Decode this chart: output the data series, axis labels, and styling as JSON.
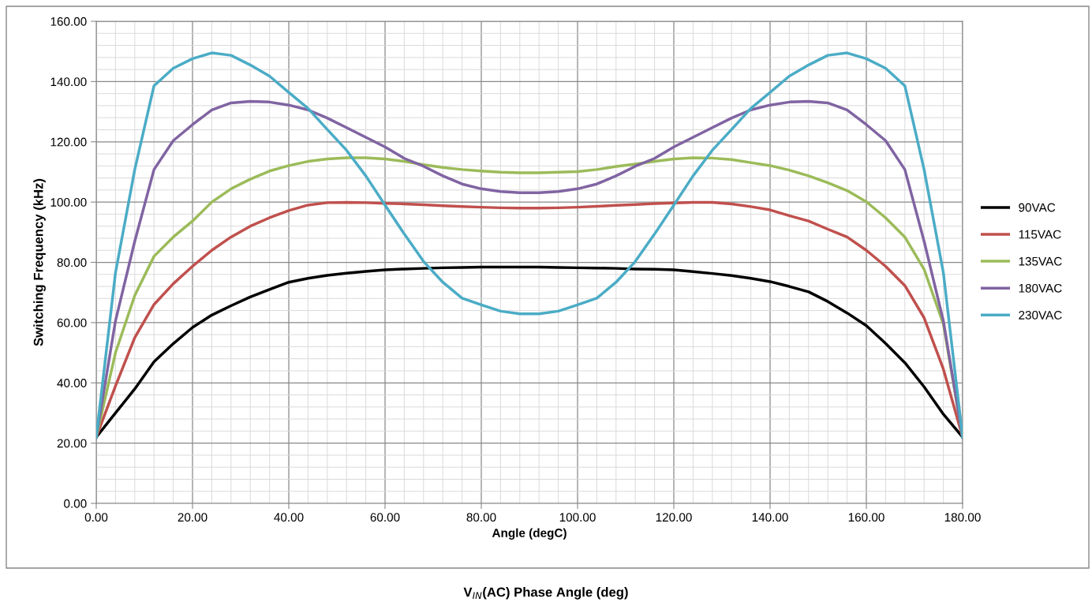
{
  "chart_data": {
    "type": "line",
    "xlabel": "Angle (degC)",
    "ylabel": "Switching Frequency (kHz)",
    "annotations": [
      "V$_{IN}$(AC) Phase Angle (deg)"
    ],
    "x": [
      0,
      4,
      8,
      12,
      16,
      20,
      24,
      28,
      32,
      36,
      40,
      44,
      48,
      52,
      56,
      60,
      64,
      68,
      72,
      76,
      80,
      84,
      88,
      92,
      96,
      100,
      104,
      108,
      112,
      116,
      120,
      124,
      128,
      132,
      136,
      140,
      144,
      148,
      152,
      156,
      160,
      164,
      168,
      172,
      176,
      180
    ],
    "series": [
      {
        "name": "90VAC",
        "color": "#000000",
        "values": [
          22,
          30,
          38,
          47,
          53,
          58.4,
          62.5,
          65.6,
          68.5,
          71,
          73.4,
          74.7,
          75.7,
          76.4,
          77,
          77.5,
          77.8,
          78,
          78.2,
          78.3,
          78.4,
          78.4,
          78.4,
          78.4,
          78.3,
          78.2,
          78.1,
          78,
          77.8,
          77.7,
          77.5,
          76.9,
          76.3,
          75.6,
          74.7,
          73.6,
          72,
          70.2,
          67,
          63.2,
          59,
          53.1,
          46.7,
          38.7,
          29.6,
          22
        ]
      },
      {
        "name": "115VAC",
        "color": "#c0504d",
        "values": [
          22,
          39,
          55,
          66,
          72.9,
          78.7,
          84,
          88.4,
          92,
          94.8,
          97.2,
          99,
          99.8,
          99.9,
          99.8,
          99.6,
          99.4,
          99.1,
          98.8,
          98.5,
          98.3,
          98.1,
          98,
          98,
          98.1,
          98.3,
          98.6,
          98.9,
          99.2,
          99.5,
          99.7,
          99.9,
          99.9,
          99.4,
          98.5,
          97.4,
          95.5,
          93.7,
          91,
          88.4,
          84,
          78.7,
          72.3,
          61.6,
          44.6,
          22
        ]
      },
      {
        "name": "135VAC",
        "color": "#9bbb59",
        "values": [
          22,
          50,
          69,
          82,
          88.4,
          93.7,
          100,
          104.4,
          107.6,
          110.3,
          112.1,
          113.5,
          114.3,
          114.7,
          114.7,
          114.3,
          113.5,
          112.4,
          111.5,
          110.8,
          110.3,
          109.9,
          109.7,
          109.7,
          109.9,
          110.1,
          110.8,
          111.8,
          112.6,
          113.5,
          114.3,
          114.7,
          114.6,
          114.1,
          113.1,
          112.1,
          110.6,
          108.7,
          106.4,
          103.8,
          100.1,
          94.8,
          88.4,
          77.7,
          59.5,
          22
        ]
      },
      {
        "name": "180VAC",
        "color": "#8064a2",
        "values": [
          22,
          60.6,
          87,
          110.8,
          120.4,
          125.7,
          130.6,
          132.9,
          133.4,
          133.2,
          132.2,
          130.6,
          127.9,
          124.7,
          121.5,
          118.3,
          114.5,
          111.9,
          108.7,
          106,
          104.4,
          103.5,
          103.1,
          103.1,
          103.5,
          104.4,
          106,
          108.7,
          111.9,
          114.5,
          118.3,
          121.5,
          124.7,
          127.9,
          130.6,
          132.2,
          133.2,
          133.4,
          132.9,
          130.6,
          125.7,
          120.4,
          110.8,
          87,
          60.6,
          22
        ]
      },
      {
        "name": "230VAC",
        "color": "#4bacc6",
        "values": [
          22,
          76.6,
          110.8,
          138.6,
          144.4,
          147.6,
          149.5,
          148.7,
          145.5,
          141.8,
          136.4,
          131.1,
          124.1,
          117.2,
          108.7,
          99,
          89.4,
          80.3,
          73.4,
          68.1,
          65.9,
          63.8,
          62.9,
          62.9,
          63.8,
          65.9,
          68.1,
          73.4,
          80.3,
          89.4,
          99,
          108.7,
          117.2,
          124.1,
          131.1,
          136.4,
          141.8,
          145.5,
          148.7,
          149.5,
          147.6,
          144.4,
          138.6,
          110.8,
          76.6,
          22
        ]
      }
    ],
    "xlim": [
      0,
      180
    ],
    "xticks": [
      {
        "value": 0,
        "label": "0.00"
      },
      {
        "value": 20,
        "label": "20.00"
      },
      {
        "value": 40,
        "label": "40.00"
      },
      {
        "value": 60,
        "label": "60.00"
      },
      {
        "value": 80,
        "label": "80.00"
      },
      {
        "value": 100,
        "label": "100.00"
      },
      {
        "value": 120,
        "label": "120.00"
      },
      {
        "value": 140,
        "label": "140.00"
      },
      {
        "value": 160,
        "label": "160.00"
      },
      {
        "value": 180,
        "label": "180.00"
      }
    ],
    "ylim": [
      0,
      160
    ],
    "yticks": [
      {
        "value": 0,
        "label": "0.00"
      },
      {
        "value": 20,
        "label": "20.00"
      },
      {
        "value": 40,
        "label": "40.00"
      },
      {
        "value": 60,
        "label": "60.00"
      },
      {
        "value": 80,
        "label": "80.00"
      },
      {
        "value": 100,
        "label": "100.00"
      },
      {
        "value": 120,
        "label": "120.00"
      },
      {
        "value": 140,
        "label": "140.00"
      },
      {
        "value": 160,
        "label": "160.00"
      }
    ],
    "grid": true,
    "legend": "right",
    "marker": "none",
    "line_style": "solid"
  }
}
